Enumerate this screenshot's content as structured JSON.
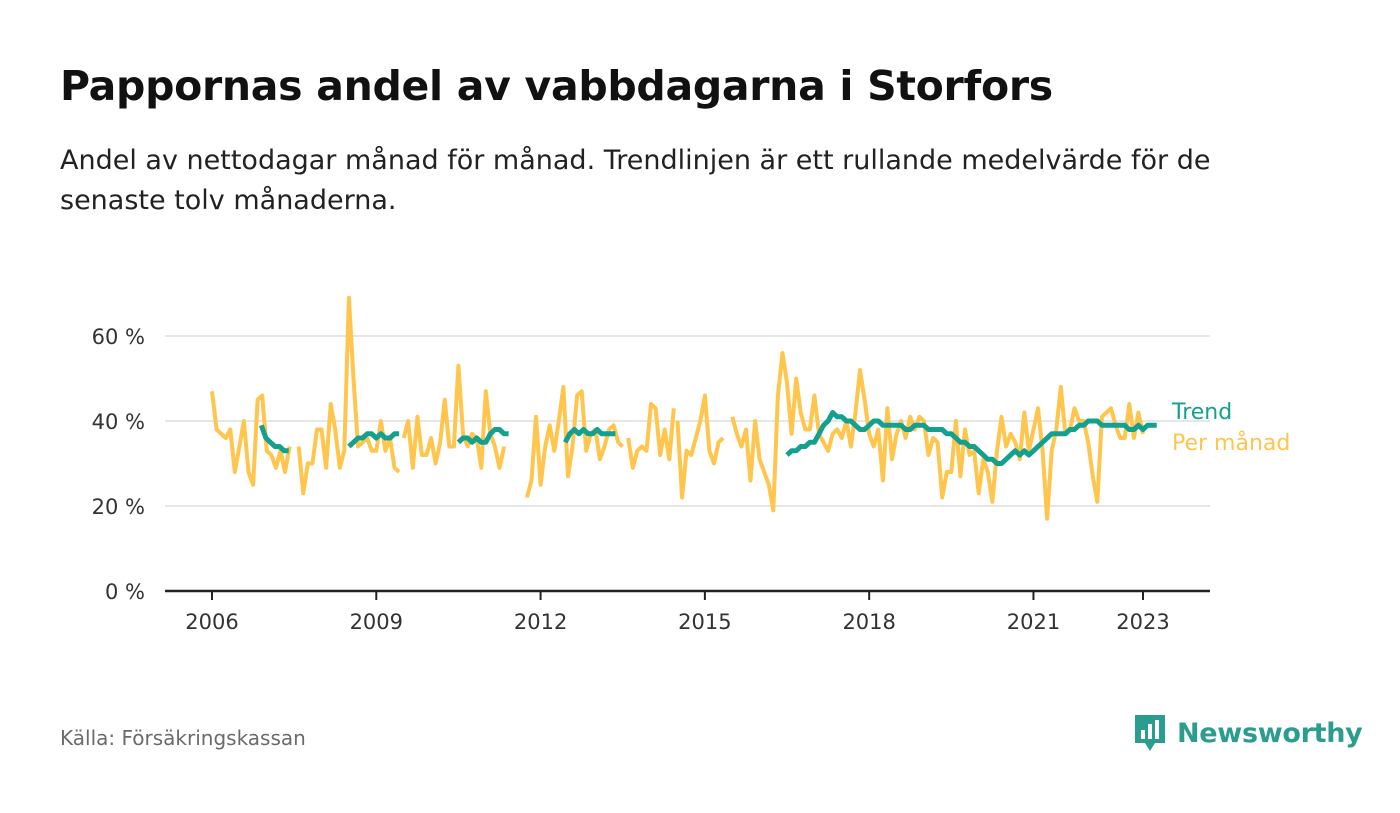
{
  "title": "Pappornas andel av vabbdagarna i Storfors",
  "subtitle": "Andel av nettodagar månad för månad. Trendlinjen är ett rullande medelvärde för de senaste tolv månaderna.",
  "source": "Källa: Försäkringskassan",
  "brand": {
    "name": "Newsworthy",
    "icon": "newsworthy-logo-icon"
  },
  "colors": {
    "monthly": "#ffc54d",
    "trend": "#14a08e",
    "grid": "#dddddd",
    "axis": "#222222",
    "brand": "#2a9d8f"
  },
  "chart_data": {
    "type": "line",
    "title": "Pappornas andel av vabbdagarna i Storfors",
    "xlabel": "",
    "ylabel": "",
    "x_unit": "year (decimal)",
    "xlim": [
      2005.2,
      2024.2
    ],
    "ylim": [
      0,
      70
    ],
    "x_ticks": [
      2006,
      2009,
      2012,
      2015,
      2018,
      2021,
      2023
    ],
    "x_tick_labels": [
      "2006",
      "2009",
      "2012",
      "2015",
      "2018",
      "2021",
      "2023"
    ],
    "y_ticks": [
      0,
      20,
      40,
      60
    ],
    "y_tick_labels": [
      "0 %",
      "20 %",
      "40 %",
      "60 %"
    ],
    "grid": "horizontal",
    "legend_placement": "right, at end of lines",
    "series": [
      {
        "name": "Per månad",
        "color": "#ffc54d",
        "segments": [
          {
            "start": 2006.0,
            "step": 0.08333,
            "values": [
              47,
              38,
              37,
              36,
              38,
              28,
              34,
              40,
              28,
              25,
              45,
              46,
              33,
              32,
              29,
              33,
              28,
              34,
              null,
              34,
              23,
              30,
              30,
              38,
              38,
              29,
              44,
              38,
              29,
              33,
              69,
              50,
              34,
              35,
              36,
              33,
              33,
              40,
              33,
              36,
              29,
              28
            ]
          },
          {
            "start": 2009.5,
            "step": 0.08333,
            "values": [
              36,
              40,
              29,
              41,
              32,
              32,
              36,
              30,
              35,
              45,
              34,
              34,
              53,
              37,
              34,
              37,
              36,
              29,
              47,
              37,
              34,
              29,
              34
            ]
          },
          {
            "start": 2011.75,
            "step": 0.08333,
            "values": [
              22,
              26,
              41,
              25,
              34,
              39,
              33,
              40,
              48,
              27,
              34,
              46,
              47,
              33,
              37,
              38,
              31,
              34,
              38,
              39,
              35,
              34
            ]
          },
          {
            "start": 2013.6,
            "step": 0.08333,
            "values": [
              36,
              29,
              33,
              34,
              33,
              44,
              43,
              32,
              38,
              31,
              43
            ]
          },
          {
            "start": 2014.5,
            "step": 0.08333,
            "values": [
              40,
              22,
              33,
              32,
              36,
              40,
              46,
              33,
              30,
              35,
              36
            ]
          },
          {
            "start": 2015.5,
            "step": 0.08333,
            "values": [
              41,
              37,
              34,
              38,
              26,
              40,
              31,
              28,
              25,
              19,
              46,
              56,
              49,
              37,
              50,
              42,
              38,
              38,
              46,
              37,
              35,
              33,
              37,
              38,
              36,
              40,
              34,
              42,
              52,
              45,
              37,
              34,
              38,
              26,
              43,
              31,
              37,
              40,
              36,
              41,
              38,
              41,
              40,
              32,
              36,
              35,
              22,
              28,
              28,
              40,
              27,
              38,
              32,
              33,
              23,
              31,
              28,
              21,
              33,
              41,
              34,
              37,
              35,
              31,
              42,
              33,
              38,
              43,
              33,
              17,
              33,
              38,
              48,
              37,
              38,
              43,
              40,
              40,
              35,
              27,
              21,
              41,
              42,
              43,
              39,
              36,
              36,
              44,
              36,
              42,
              37
            ]
          }
        ]
      },
      {
        "name": "Trend",
        "color": "#14a08e",
        "segments": [
          {
            "start": 2006.9,
            "step": 0.08333,
            "values": [
              39,
              36,
              35,
              34,
              34,
              33,
              33
            ]
          },
          {
            "start": 2008.5,
            "step": 0.08333,
            "values": [
              34,
              35,
              36,
              36,
              37,
              37,
              36,
              37,
              36,
              36,
              37,
              37
            ]
          },
          {
            "start": 2010.5,
            "step": 0.08333,
            "values": [
              35,
              36,
              36,
              35,
              36,
              35,
              35,
              37,
              38,
              38,
              37,
              37
            ]
          },
          {
            "start": 2012.45,
            "step": 0.08333,
            "values": [
              35,
              37,
              38,
              37,
              38,
              37,
              37,
              38,
              37,
              37,
              37,
              37
            ]
          },
          {
            "start": 2016.5,
            "step": 0.08333,
            "values": [
              32,
              33,
              33,
              34,
              34,
              35,
              35,
              37,
              39,
              40,
              42,
              41,
              41,
              40,
              40,
              39,
              38,
              38,
              39,
              40,
              40,
              39,
              39,
              39,
              39,
              39,
              38,
              38,
              39,
              39,
              39,
              38,
              38,
              38,
              38,
              37,
              37,
              36,
              35,
              35,
              34,
              34,
              33,
              32,
              31,
              31,
              30,
              30,
              31,
              32,
              33,
              32,
              33,
              32,
              33,
              34,
              35,
              36,
              37,
              37,
              37,
              37,
              38,
              38,
              39,
              39,
              40,
              40,
              40,
              39,
              39,
              39,
              39,
              39,
              39,
              38,
              38,
              39,
              38,
              39,
              39,
              39
            ]
          }
        ]
      }
    ]
  }
}
